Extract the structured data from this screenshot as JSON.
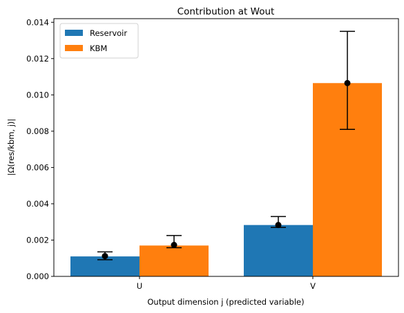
{
  "chart_data": {
    "type": "bar",
    "title": "Contribution at Wout",
    "xlabel": "Output dimension j (predicted variable)",
    "ylabel": "|Ω(res/kbm, j)|",
    "categories": [
      "U",
      "V"
    ],
    "ylim": [
      0,
      0.0142
    ],
    "yticks": [
      "0.000",
      "0.002",
      "0.004",
      "0.006",
      "0.008",
      "0.010",
      "0.012",
      "0.014"
    ],
    "legend_position": "top-left",
    "grid": false,
    "series": [
      {
        "name": "Reservoir",
        "color": "#1f77b4",
        "values": [
          0.0011,
          0.00283
        ],
        "points": [
          0.00112,
          0.00283
        ],
        "err_low": [
          0.00092,
          0.0027
        ],
        "err_high": [
          0.00135,
          0.0033
        ]
      },
      {
        "name": "KBM",
        "color": "#ff7f0e",
        "values": [
          0.0017,
          0.01065
        ],
        "points": [
          0.00173,
          0.01065
        ],
        "err_low": [
          0.00158,
          0.0081
        ],
        "err_high": [
          0.00225,
          0.0135
        ]
      }
    ]
  }
}
